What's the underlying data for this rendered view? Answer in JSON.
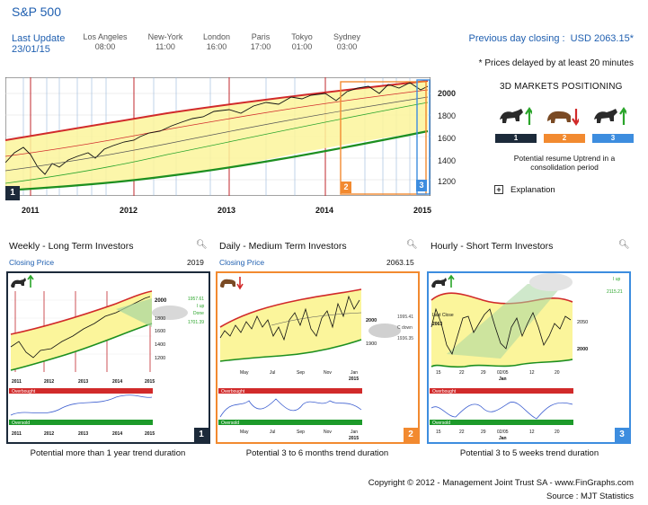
{
  "header": {
    "title": "S&P 500",
    "last_update_label": "Last Update",
    "last_update_date": "23/01/15",
    "cities": [
      {
        "name": "Los Angeles",
        "time": "08:00"
      },
      {
        "name": "New-York",
        "time": "11:00"
      },
      {
        "name": "London",
        "time": "16:00"
      },
      {
        "name": "Paris",
        "time": "17:00"
      },
      {
        "name": "Tokyo",
        "time": "01:00"
      },
      {
        "name": "Sydney",
        "time": "03:00"
      }
    ],
    "previous_close_label": "Previous day closing :",
    "previous_close_value": "USD 2063.15*",
    "delayed_note": "* Prices delayed by at least 20 minutes"
  },
  "positioning": {
    "title": "3D MARKETS POSITIONING",
    "items": [
      {
        "num": "1",
        "animal": "bull",
        "arrow": "up",
        "color": "#1c2a3a"
      },
      {
        "num": "2",
        "animal": "bear",
        "arrow": "down",
        "color": "#f28a30"
      },
      {
        "num": "3",
        "animal": "bull",
        "arrow": "up",
        "color": "#3d8ddf"
      }
    ],
    "note": "Potential resume Uptrend in a consolidation period",
    "explanation_label": "Explanation",
    "explanation_icon": "+"
  },
  "main_chart": {
    "years": [
      "2011",
      "2012",
      "2013",
      "2014",
      "2015"
    ],
    "y_ticks": [
      "2000",
      "1800",
      "1600",
      "1400",
      "1200"
    ],
    "tags": [
      "1",
      "2",
      "3"
    ]
  },
  "panels": [
    {
      "title": "Weekly - Long Term Investors",
      "closing_label": "Closing Price",
      "closing_value": "2019",
      "caption": "Potential more than 1 year trend duration",
      "num": "1",
      "color": "#1c2a3a",
      "x_labels": [
        "2011",
        "2012",
        "2013",
        "2014",
        "2015"
      ],
      "y_labels": [
        "2000",
        "1800",
        "1600",
        "1400",
        "1200"
      ],
      "annotations": [
        "1957.61",
        "I up",
        "Done",
        "1701.39"
      ],
      "overbought": "Overbought",
      "oversold": "Oversold"
    },
    {
      "title": "Daily - Medium Term Investors",
      "closing_label": "Closing Price",
      "closing_value": "2063.15",
      "caption": "Potential 3 to 6 months trend duration",
      "num": "2",
      "color": "#f28a30",
      "x_labels": [
        "May",
        "Jul",
        "Sep",
        "Nov",
        "Jan"
      ],
      "x_sub": "2015",
      "y_labels": [
        "2000",
        "1900"
      ],
      "annotations": [
        "1995.41",
        "C down",
        "1936.35"
      ],
      "overbought": "Overbought",
      "oversold": "Oversold"
    },
    {
      "title": "Hourly - Short Term Investors",
      "closing_label": "",
      "closing_value": "",
      "caption": "Potential 3 to 5 weeks trend duration",
      "num": "3",
      "color": "#3d8ddf",
      "x_labels": [
        "15",
        "22",
        "29",
        "02/05",
        "12",
        "20"
      ],
      "x_sub": "Jan",
      "y_labels": [
        "2050",
        "2000"
      ],
      "annotations": [
        "I up",
        "2115.21",
        "Last Close",
        "2063"
      ],
      "overbought": "Overbought",
      "oversold": "Oversold"
    }
  ],
  "footer": {
    "copyright": "Copyright © 2012 - Management Joint Trust SA - www.FinGraphs.com",
    "source": "Source : MJT Statistics"
  }
}
